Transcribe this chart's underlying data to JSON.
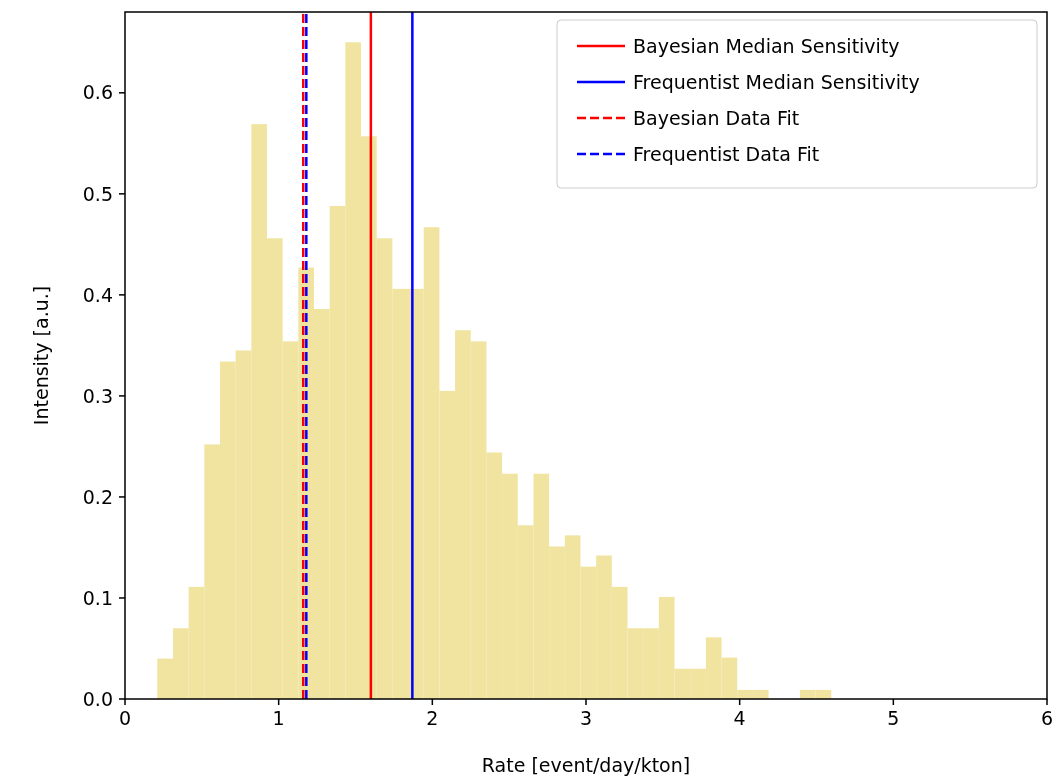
{
  "chart_data": {
    "type": "histogram",
    "xlabel": "Rate [event/day/kton]",
    "ylabel": "Intensity [a.u.]",
    "bins": [
      0.21,
      0.312,
      0.414,
      0.516,
      0.618,
      0.72,
      0.822,
      0.924,
      1.026,
      1.128,
      1.23,
      1.332,
      1.434,
      1.536,
      1.638,
      1.74,
      1.842,
      1.944,
      2.046,
      2.148,
      2.25,
      2.352,
      2.454,
      2.556,
      2.658,
      2.76,
      2.862,
      2.964,
      3.066,
      3.168,
      3.27,
      3.372,
      3.474,
      3.576,
      3.678,
      3.78,
      3.882,
      3.984,
      4.086,
      4.188,
      4.29,
      4.392,
      4.494,
      4.596
    ],
    "values": [
      0.04,
      0.07,
      0.111,
      0.252,
      0.334,
      0.345,
      0.569,
      0.456,
      0.354,
      0.427,
      0.386,
      0.488,
      0.65,
      0.557,
      0.456,
      0.406,
      0.406,
      0.467,
      0.305,
      0.365,
      0.354,
      0.244,
      0.223,
      0.172,
      0.223,
      0.151,
      0.162,
      0.131,
      0.142,
      0.111,
      0.07,
      0.07,
      0.101,
      0.03,
      0.03,
      0.061,
      0.041,
      0.009,
      0.009,
      0,
      0,
      0.009,
      0.009
    ],
    "color": "#f0e4a0",
    "series": [
      {
        "type": "line",
        "name": "Bayesian Median Sensitivity",
        "color": "#ff0000",
        "line_style": "solid",
        "x": [
          1.6,
          1.6
        ],
        "values": [
          0,
          0.68
        ]
      },
      {
        "type": "line",
        "name": "Frequentist Median Sensitivity",
        "color": "#0000ff",
        "line_style": "solid",
        "x": [
          1.87,
          1.87
        ],
        "values": [
          0,
          0.68
        ]
      },
      {
        "type": "line",
        "name": "Bayesian Data Fit",
        "color": "#ff0000",
        "line_style": "dashed",
        "x": [
          1.16,
          1.16
        ],
        "values": [
          0,
          0.68
        ]
      },
      {
        "type": "line",
        "name": "Frequentist Data Fit",
        "color": "#0000ff",
        "line_style": "dashed",
        "x": [
          1.18,
          1.18
        ],
        "values": [
          0,
          0.68
        ]
      }
    ],
    "xlim": [
      0,
      6
    ],
    "xticks": [
      0,
      1,
      2,
      3,
      4,
      5,
      6
    ],
    "ylim": [
      0,
      0.68
    ],
    "yticks": [
      {
        "value": 0,
        "label": "0.0"
      },
      0.1,
      0.2,
      0.3,
      0.4,
      0.5,
      0.6
    ],
    "legend": "top right",
    "grid": false
  }
}
